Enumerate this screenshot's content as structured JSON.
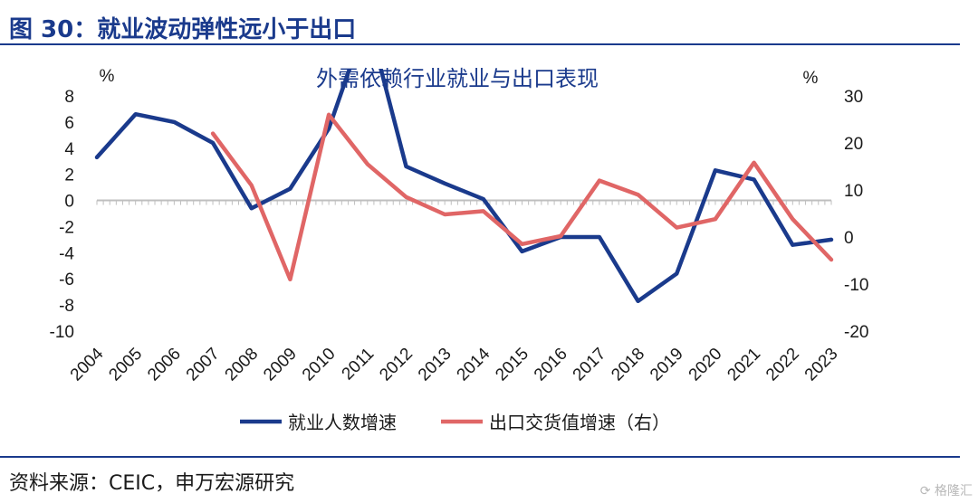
{
  "figure_title": "图 30：就业波动弹性远小于出口",
  "source": "资料来源：CEIC，申万宏源研究",
  "watermark": "格隆汇",
  "chart_data": {
    "type": "line",
    "title": "外需依赖行业就业与出口表现",
    "x": [
      "2004",
      "2005",
      "2006",
      "2007",
      "2008",
      "2009",
      "2010",
      "2011",
      "2012",
      "2013",
      "2014",
      "2015",
      "2016",
      "2017",
      "2018",
      "2019",
      "2020",
      "2021",
      "2022",
      "2023"
    ],
    "left_axis": {
      "unit": "%",
      "range": [
        -10,
        8
      ],
      "ticks": [
        8,
        6,
        4,
        2,
        0,
        -2,
        -4,
        -6,
        -8,
        -10
      ]
    },
    "right_axis": {
      "unit": "%",
      "range": [
        -20,
        30
      ],
      "ticks": [
        30,
        20,
        10,
        0,
        -10,
        -20
      ]
    },
    "series": [
      {
        "name": "就业人数增速",
        "axis": "left",
        "color": "#1a3a8c",
        "values": [
          3.3,
          6.6,
          6.0,
          4.4,
          -0.6,
          0.9,
          5.5,
          14.0,
          2.6,
          1.3,
          0.1,
          -3.9,
          -2.8,
          -2.8,
          -7.7,
          -5.6,
          2.3,
          1.6,
          -3.4,
          -3.0
        ]
      },
      {
        "name": "出口交货值增速（右）",
        "axis": "right",
        "color": "#e06666",
        "values": [
          null,
          null,
          null,
          22.0,
          11.0,
          -9.0,
          26.0,
          15.5,
          8.5,
          4.8,
          5.5,
          -1.5,
          0.2,
          12.0,
          9.0,
          2.0,
          3.8,
          15.8,
          3.8,
          -4.8
        ]
      }
    ],
    "legend_position": "bottom",
    "grid": false
  }
}
